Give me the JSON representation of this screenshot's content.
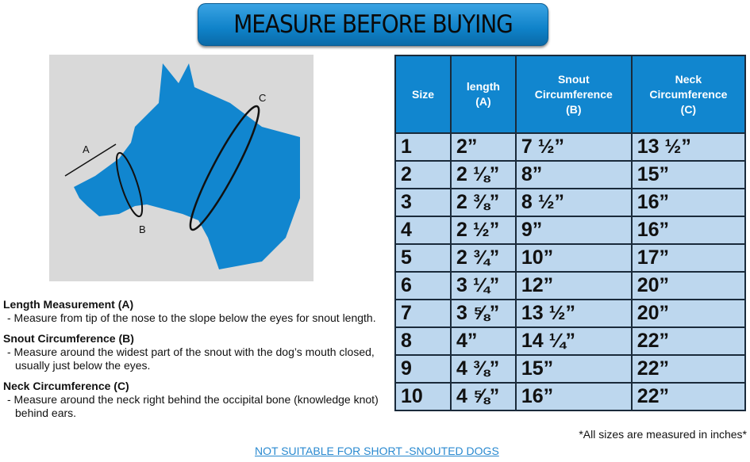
{
  "title": "MEASURE BEFORE BUYING",
  "diagram": {
    "label_a": "A",
    "label_b": "B",
    "label_c": "C",
    "colors": {
      "dog": "#1186cf",
      "background": "#d9d9d9"
    }
  },
  "table": {
    "headers": [
      "Size",
      "length\n(A)",
      "Snout\nCircumference\n(B)",
      "Neck\nCircumference\n(C)"
    ],
    "rows": [
      [
        "1",
        "2”",
        "7 ½”",
        "13 ½”"
      ],
      [
        "2",
        "2 ⅛”",
        "8”",
        "15”"
      ],
      [
        "3",
        "2 ⅜”",
        "8 ½”",
        "16”"
      ],
      [
        "4",
        "2 ½”",
        "9”",
        "16”"
      ],
      [
        "5",
        "2 ¾”",
        "10”",
        "17”"
      ],
      [
        "6",
        "3 ¼”",
        "12”",
        "20”"
      ],
      [
        "7",
        "3 ⅝”",
        "13 ½”",
        "20”"
      ],
      [
        "8",
        "4”",
        "14 ¼”",
        "22”"
      ],
      [
        "9",
        "4 ⅜”",
        "15”",
        "22”"
      ],
      [
        "10",
        "4 ⅝”",
        "16”",
        "22”"
      ]
    ]
  },
  "note": "*All sizes are measured in inches*",
  "instructions": [
    {
      "heading": "Length Measurement (A)",
      "text": "- Measure from tip of the nose to the slope below the eyes for snout length."
    },
    {
      "heading": "Snout Circumference (B)",
      "text": "- Measure around the widest part of the snout with the dog’s mouth closed, usually just below the eyes."
    },
    {
      "heading": "Neck Circumference (C)",
      "text": "- Measure around the neck right behind the occipital bone (knowledge knot) behind ears."
    }
  ],
  "warning_link": "NOT SUITABLE FOR SHORT -SNOUTED DOGS"
}
